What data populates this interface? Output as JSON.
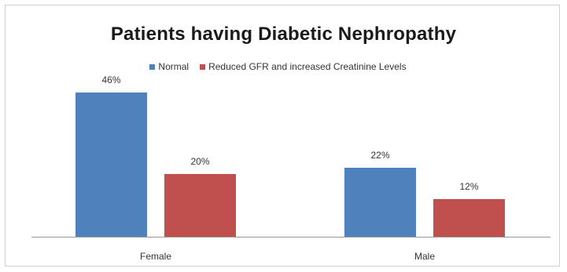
{
  "chart_data": {
    "type": "bar",
    "title": "Patients having Diabetic Nephropathy",
    "categories": [
      "Female",
      "Male"
    ],
    "series": [
      {
        "name": "Normal",
        "values": [
          46,
          22
        ],
        "labels": [
          "46%",
          "22%"
        ],
        "color": "#4f81bd"
      },
      {
        "name": "Reduced GFR and increased Creatinine Levels",
        "values": [
          20,
          12
        ],
        "labels": [
          "20%",
          "12%"
        ],
        "color": "#c0504d"
      }
    ],
    "ylim": [
      0,
      50
    ],
    "grid": false,
    "legend": "top"
  }
}
